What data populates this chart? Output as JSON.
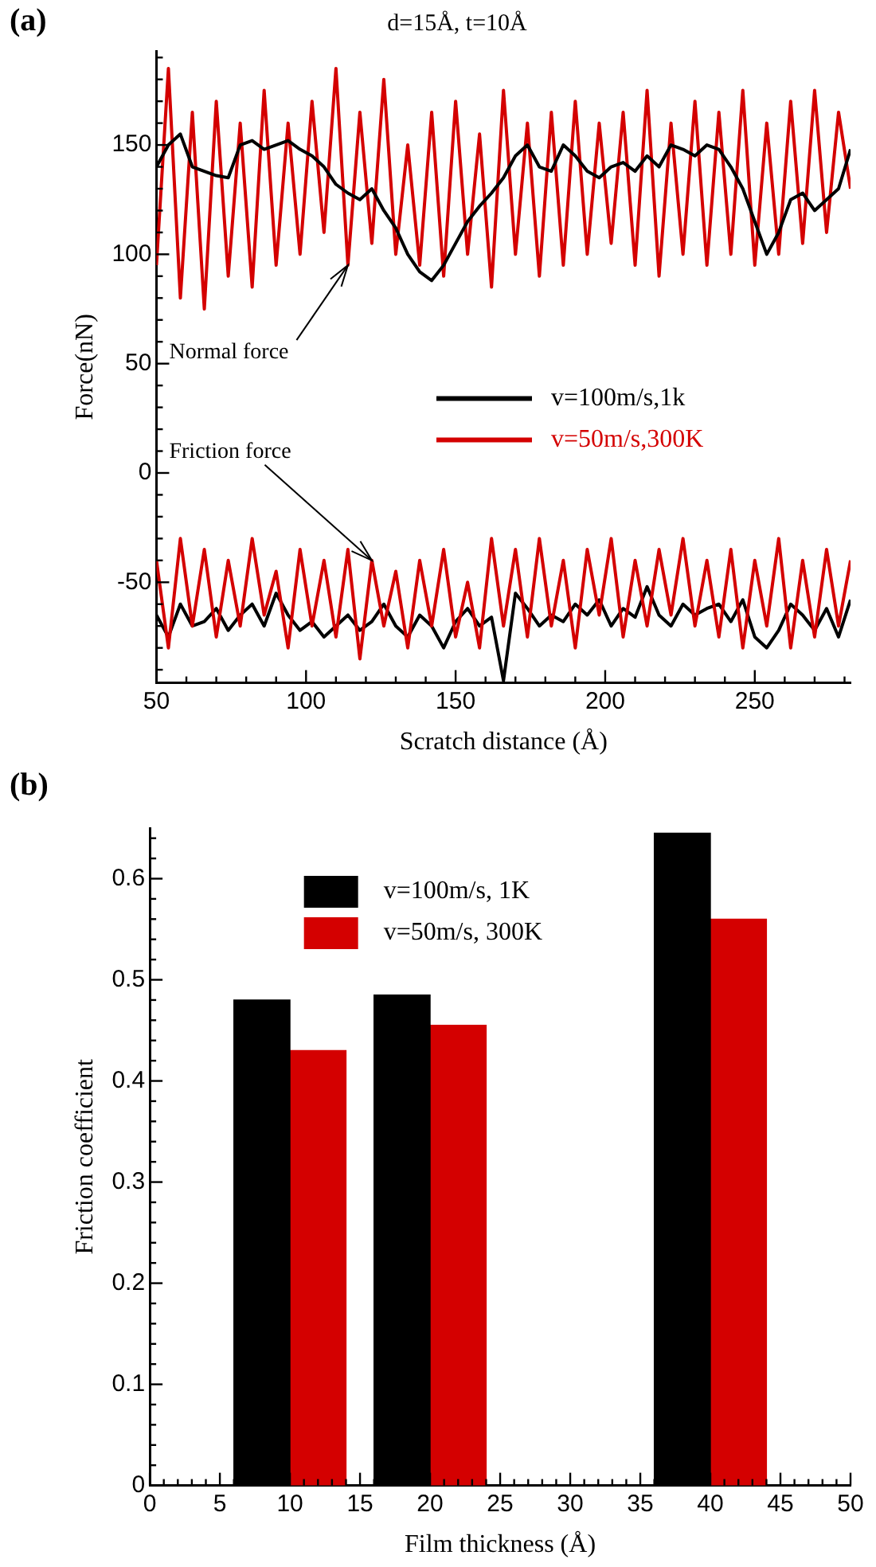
{
  "chart_data": [
    {
      "type": "line",
      "title": "d=15Å, t=10Å",
      "xlabel": "Scratch distance (Å)",
      "ylabel": "Force(nN)",
      "x": [
        50,
        54,
        58,
        62,
        66,
        70,
        74,
        78,
        82,
        86,
        90,
        94,
        98,
        102,
        106,
        110,
        114,
        118,
        122,
        126,
        130,
        134,
        138,
        142,
        146,
        150,
        154,
        158,
        162,
        166,
        170,
        174,
        178,
        182,
        186,
        190,
        194,
        198,
        202,
        206,
        210,
        214,
        218,
        222,
        226,
        230,
        234,
        238,
        242,
        246,
        250,
        254,
        258,
        262,
        266,
        270,
        274,
        278,
        282
      ],
      "series": [
        {
          "name": "v=100m/s,1k",
          "color": "#000000",
          "values": [
            140,
            150,
            155,
            140,
            138,
            136,
            135,
            150,
            152,
            148,
            150,
            152,
            148,
            145,
            140,
            132,
            128,
            125,
            130,
            120,
            112,
            100,
            92,
            88,
            95,
            105,
            115,
            122,
            128,
            135,
            145,
            150,
            140,
            138,
            150,
            145,
            138,
            135,
            140,
            142,
            138,
            145,
            140,
            150,
            148,
            145,
            150,
            148,
            140,
            130,
            115,
            100,
            110,
            125,
            128,
            120,
            125,
            130,
            148
          ]
        },
        {
          "name": "v=50m/s,300K",
          "color": "#d40000",
          "values": [
            95,
            185,
            80,
            165,
            75,
            170,
            90,
            160,
            85,
            175,
            95,
            160,
            100,
            170,
            110,
            185,
            95,
            165,
            105,
            180,
            100,
            150,
            95,
            165,
            90,
            170,
            100,
            155,
            85,
            175,
            100,
            160,
            90,
            165,
            95,
            170,
            100,
            160,
            105,
            165,
            95,
            175,
            90,
            160,
            100,
            170,
            95,
            165,
            100,
            175,
            95,
            160,
            100,
            170,
            105,
            175,
            110,
            165,
            130
          ]
        },
        {
          "color": "#d40000",
          "values": [
            -40,
            -80,
            -30,
            -70,
            -35,
            -75,
            -40,
            -70,
            -30,
            -65,
            -45,
            -80,
            -35,
            -70,
            -40,
            -75,
            -35,
            -85,
            -40,
            -70,
            -45,
            -80,
            -40,
            -70,
            -35,
            -75,
            -50,
            -80,
            -30,
            -70,
            -35,
            -75,
            -30,
            -70,
            -40,
            -80,
            -35,
            -65,
            -30,
            -75,
            -40,
            -70,
            -35,
            -65,
            -30,
            -70,
            -40,
            -75,
            -35,
            -80,
            -40,
            -70,
            -30,
            -80,
            -40,
            -75,
            -35,
            -70,
            -40
          ]
        },
        {
          "color": "#000000",
          "values": [
            -65,
            -75,
            -60,
            -70,
            -68,
            -62,
            -72,
            -65,
            -60,
            -70,
            -55,
            -65,
            -72,
            -68,
            -75,
            -70,
            -65,
            -72,
            -68,
            -60,
            -70,
            -75,
            -65,
            -70,
            -80,
            -68,
            -62,
            -70,
            -66,
            -95,
            -55,
            -62,
            -70,
            -65,
            -68,
            -60,
            -65,
            -58,
            -70,
            -62,
            -66,
            -52,
            -65,
            -70,
            -60,
            -65,
            -62,
            -60,
            -68,
            -58,
            -75,
            -80,
            -72,
            -60,
            -65,
            -72,
            -62,
            -75,
            -58
          ]
        }
      ],
      "xlim": [
        50,
        282
      ],
      "ylim": [
        -96,
        193
      ],
      "xticks": [
        50,
        {
          "value": 60,
          "label": null
        },
        {
          "value": 70,
          "label": null
        },
        {
          "value": 80,
          "label": null
        },
        {
          "value": 90,
          "label": null
        },
        100,
        {
          "value": 110,
          "label": null
        },
        {
          "value": 120,
          "label": null
        },
        {
          "value": 130,
          "label": null
        },
        {
          "value": 140,
          "label": null
        },
        150,
        {
          "value": 160,
          "label": null
        },
        {
          "value": 170,
          "label": null
        },
        {
          "value": 180,
          "label": null
        },
        {
          "value": 190,
          "label": null
        },
        200,
        {
          "value": 210,
          "label": null
        },
        {
          "value": 220,
          "label": null
        },
        {
          "value": 230,
          "label": null
        },
        {
          "value": 240,
          "label": null
        },
        250,
        {
          "value": 260,
          "label": null
        },
        {
          "value": 270,
          "label": null
        },
        {
          "value": 280,
          "label": null
        }
      ],
      "yticks": [
        {
          "value": -90,
          "label": null
        },
        {
          "value": -80,
          "label": null
        },
        {
          "value": -70,
          "label": null
        },
        {
          "value": -60,
          "label": null
        },
        -50,
        {
          "value": -40,
          "label": null
        },
        {
          "value": -30,
          "label": null
        },
        {
          "value": -20,
          "label": null
        },
        {
          "value": -10,
          "label": null
        },
        0,
        {
          "value": 10,
          "label": null
        },
        {
          "value": 20,
          "label": null
        },
        {
          "value": 30,
          "label": null
        },
        {
          "value": 40,
          "label": null
        },
        50,
        {
          "value": 60,
          "label": null
        },
        {
          "value": 70,
          "label": null
        },
        {
          "value": 80,
          "label": null
        },
        {
          "value": 90,
          "label": null
        },
        100,
        {
          "value": 110,
          "label": null
        },
        {
          "value": 120,
          "label": null
        },
        {
          "value": 130,
          "label": null
        },
        {
          "value": 140,
          "label": null
        },
        150,
        {
          "value": 160,
          "label": null
        },
        {
          "value": 170,
          "label": null
        },
        {
          "value": 180,
          "label": null
        },
        {
          "value": 190,
          "label": null
        }
      ],
      "annotations": [
        "(a)",
        {
          "text": "Normal force",
          "x": 114,
          "y": 95
        },
        {
          "text": "Friction force",
          "x": 122,
          "y": -40
        }
      ],
      "legend": "right",
      "grid": false,
      "marker": "none",
      "line_style": "solid"
    },
    {
      "type": "bar",
      "xlabel": "Film thickness (Å)",
      "ylabel": "Friction coefficient",
      "series": [
        {
          "name": "v=100m/s, 1K",
          "color": "#000000",
          "x": [
            8,
            18,
            38
          ],
          "values": [
            0.48,
            0.485,
            0.645
          ]
        },
        {
          "name": "v=50m/s, 300K",
          "color": "#d40000",
          "x": [
            12,
            22,
            42
          ],
          "values": [
            0.43,
            0.455,
            0.56
          ]
        }
      ],
      "xlim": [
        0,
        50
      ],
      "ylim": [
        0,
        0.65
      ],
      "xticks": [
        0,
        {
          "value": 1,
          "label": null
        },
        {
          "value": 2,
          "label": null
        },
        {
          "value": 3,
          "label": null
        },
        {
          "value": 4,
          "label": null
        },
        5,
        {
          "value": 6,
          "label": null
        },
        {
          "value": 7,
          "label": null
        },
        {
          "value": 8,
          "label": null
        },
        {
          "value": 9,
          "label": null
        },
        10,
        {
          "value": 11,
          "label": null
        },
        {
          "value": 12,
          "label": null
        },
        {
          "value": 13,
          "label": null
        },
        {
          "value": 14,
          "label": null
        },
        15,
        {
          "value": 16,
          "label": null
        },
        {
          "value": 17,
          "label": null
        },
        {
          "value": 18,
          "label": null
        },
        {
          "value": 19,
          "label": null
        },
        20,
        {
          "value": 21,
          "label": null
        },
        {
          "value": 22,
          "label": null
        },
        {
          "value": 23,
          "label": null
        },
        {
          "value": 24,
          "label": null
        },
        25,
        {
          "value": 26,
          "label": null
        },
        {
          "value": 27,
          "label": null
        },
        {
          "value": 28,
          "label": null
        },
        {
          "value": 29,
          "label": null
        },
        30,
        {
          "value": 31,
          "label": null
        },
        {
          "value": 32,
          "label": null
        },
        {
          "value": 33,
          "label": null
        },
        {
          "value": 34,
          "label": null
        },
        35,
        {
          "value": 36,
          "label": null
        },
        {
          "value": 37,
          "label": null
        },
        {
          "value": 38,
          "label": null
        },
        {
          "value": 39,
          "label": null
        },
        40,
        {
          "value": 41,
          "label": null
        },
        {
          "value": 42,
          "label": null
        },
        {
          "value": 43,
          "label": null
        },
        {
          "value": 44,
          "label": null
        },
        45,
        {
          "value": 46,
          "label": null
        },
        {
          "value": 47,
          "label": null
        },
        {
          "value": 48,
          "label": null
        },
        {
          "value": 49,
          "label": null
        },
        50
      ],
      "yticks": [
        0,
        {
          "value": 0.02,
          "label": null
        },
        {
          "value": 0.04,
          "label": null
        },
        {
          "value": 0.06,
          "label": null
        },
        {
          "value": 0.08,
          "label": null
        },
        0.1,
        {
          "value": 0.12,
          "label": null
        },
        {
          "value": 0.14,
          "label": null
        },
        {
          "value": 0.16,
          "label": null
        },
        {
          "value": 0.18,
          "label": null
        },
        0.2,
        {
          "value": 0.22,
          "label": null
        },
        {
          "value": 0.24,
          "label": null
        },
        {
          "value": 0.26,
          "label": null
        },
        {
          "value": 0.28,
          "label": null
        },
        0.3,
        {
          "value": 0.32,
          "label": null
        },
        {
          "value": 0.34,
          "label": null
        },
        {
          "value": 0.36,
          "label": null
        },
        {
          "value": 0.38,
          "label": null
        },
        0.4,
        {
          "value": 0.42,
          "label": null
        },
        {
          "value": 0.44,
          "label": null
        },
        {
          "value": 0.46,
          "label": null
        },
        {
          "value": 0.48,
          "label": null
        },
        0.5,
        {
          "value": 0.52,
          "label": null
        },
        {
          "value": 0.54,
          "label": null
        },
        {
          "value": 0.56,
          "label": null
        },
        {
          "value": 0.58,
          "label": null
        },
        0.6,
        {
          "value": 0.62,
          "label": null
        },
        {
          "value": 0.64,
          "label": null
        }
      ],
      "annotations": [
        "(b)"
      ],
      "legend": "top",
      "grid": false
    }
  ]
}
